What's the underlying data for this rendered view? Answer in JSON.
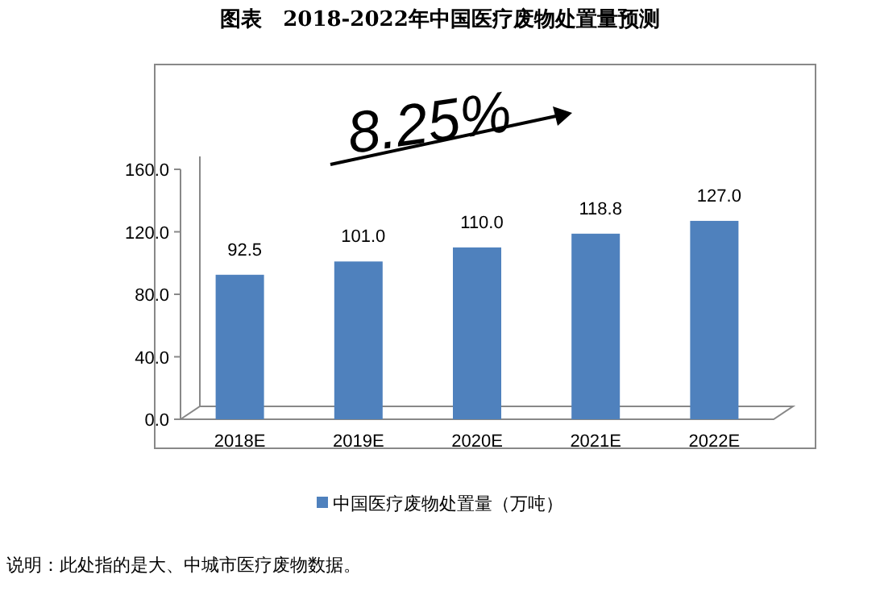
{
  "chart_data": {
    "type": "bar",
    "title": "图表　2018-2022年中国医疗废物处置量预测",
    "categories": [
      "2018E",
      "2019E",
      "2020E",
      "2021E",
      "2022E"
    ],
    "series": [
      {
        "name": "中国医疗废物处置量（万吨）",
        "color": "#4f81bd",
        "values": [
          92.5,
          101.0,
          110.0,
          118.8,
          127.0
        ],
        "value_labels": [
          "92.5",
          "101.0",
          "110.0",
          "118.8",
          "127.0"
        ]
      }
    ],
    "ylim": [
      0,
      160
    ],
    "yticks": [
      {
        "value": 0,
        "label": "0.0"
      },
      {
        "value": 40,
        "label": "40.0"
      },
      {
        "value": 80,
        "label": "80.0"
      },
      {
        "value": 120,
        "label": "120.0"
      },
      {
        "value": 160,
        "label": "160.0"
      }
    ],
    "legend": "bottom",
    "annotations": [
      "8.25%",
      "说明：此处指的是大、中城市医疗废物数据。"
    ]
  }
}
